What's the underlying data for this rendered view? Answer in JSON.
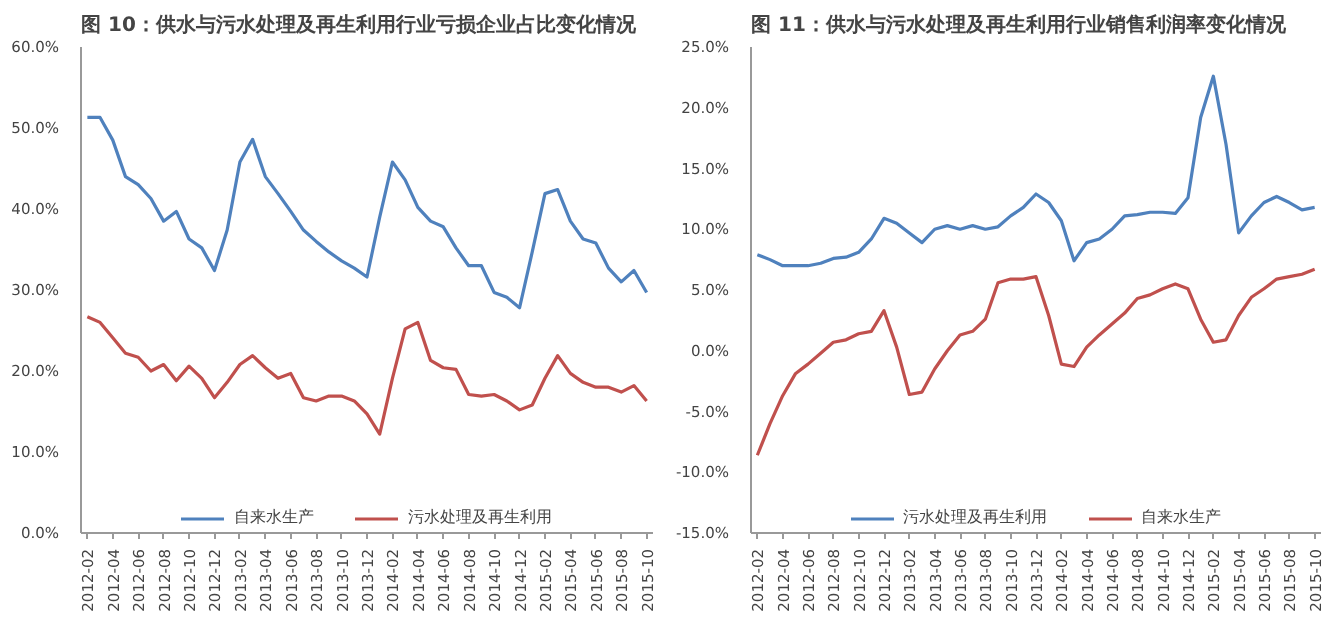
{
  "chart_data": [
    {
      "type": "line",
      "title": "图 10：供水与污水处理及再生利用行业亏损企业占比变化情况",
      "categories": [
        "2012-02",
        null,
        "2012-04",
        null,
        "2012-06",
        null,
        "2012-08",
        null,
        "2012-10",
        null,
        "2012-12",
        null,
        "2013-02",
        null,
        "2013-04",
        null,
        "2013-06",
        null,
        "2013-08",
        null,
        "2013-10",
        null,
        "2013-12",
        null,
        "2014-02",
        null,
        "2014-04",
        null,
        "2014-06",
        null,
        "2014-08",
        null,
        "2014-10",
        null,
        "2014-12",
        null,
        "2015-02",
        null,
        "2015-04",
        null,
        "2015-06",
        null,
        "2015-08",
        null,
        "2015-10"
      ],
      "series": [
        {
          "name": "自来水生产",
          "color": "#4f81bd",
          "values": [
            51.3,
            51.3,
            48.5,
            44,
            43,
            41.3,
            38.5,
            39.7,
            36.3,
            35.2,
            32.4,
            37.4,
            45.8,
            48.6,
            44,
            41.9,
            39.7,
            37.4,
            36,
            34.7,
            33.6,
            32.7,
            31.6,
            39,
            45.8,
            43.6,
            40.2,
            38.5,
            37.8,
            35.2,
            33,
            33,
            29.7,
            29.1,
            27.8,
            34.7,
            41.9,
            42.4,
            38.5,
            36.3,
            35.8,
            32.7,
            31,
            32.4,
            29.7
          ]
        },
        {
          "name": "污水处理及再生利用",
          "color": "#c0504d",
          "values": [
            26.7,
            26,
            24.1,
            22.2,
            21.7,
            20,
            20.8,
            18.8,
            20.6,
            19.1,
            16.7,
            18.6,
            20.8,
            21.9,
            20.4,
            19.1,
            19.7,
            16.7,
            16.3,
            16.9,
            16.9,
            16.3,
            14.7,
            12.2,
            19.1,
            25.2,
            26,
            21.3,
            20.4,
            20.2,
            17.1,
            16.9,
            17.1,
            16.3,
            15.2,
            15.8,
            19.1,
            21.9,
            19.7,
            18.6,
            18,
            18,
            17.4,
            18.2,
            16.3
          ]
        }
      ],
      "ylim": [
        0,
        60
      ],
      "yticks": [
        {
          "value": 0,
          "label": "0.0%"
        },
        {
          "value": 10,
          "label": "10.0%"
        },
        {
          "value": 20,
          "label": "20.0%"
        },
        {
          "value": 30,
          "label": "30.0%"
        },
        {
          "value": 40,
          "label": "40.0%"
        },
        {
          "value": 50,
          "label": "50.0%"
        },
        {
          "value": 60,
          "label": "60.0%"
        }
      ],
      "legend": "bottom",
      "grid": false,
      "marker": "none",
      "line_style": "solid"
    },
    {
      "type": "line",
      "title": "图 11：供水与污水处理及再生利用行业销售利润率变化情况",
      "categories": [
        "2012-02",
        null,
        "2012-04",
        null,
        "2012-06",
        null,
        "2012-08",
        null,
        "2012-10",
        null,
        "2012-12",
        null,
        "2013-02",
        null,
        "2013-04",
        null,
        "2013-06",
        null,
        "2013-08",
        null,
        "2013-10",
        null,
        "2013-12",
        null,
        "2014-02",
        null,
        "2014-04",
        null,
        "2014-06",
        null,
        "2014-08",
        null,
        "2014-10",
        null,
        "2014-12",
        null,
        "2015-02",
        null,
        "2015-04",
        null,
        "2015-06",
        null,
        "2015-08",
        null,
        "2015-10"
      ],
      "series": [
        {
          "name": "污水处理及再生利用",
          "color": "#4f81bd",
          "values": [
            7.9,
            7.5,
            7,
            7,
            7,
            7.2,
            7.6,
            7.7,
            8.1,
            9.2,
            10.9,
            10.5,
            9.7,
            8.9,
            10,
            10.3,
            10,
            10.3,
            10,
            10.2,
            11.1,
            11.8,
            12.9,
            12.2,
            10.7,
            7.4,
            8.9,
            9.2,
            10,
            11.1,
            11.2,
            11.4,
            11.4,
            11.3,
            12.6,
            19.2,
            22.6,
            17,
            9.7,
            11.1,
            12.2,
            12.7,
            12.2,
            11.6,
            11.8
          ]
        },
        {
          "name": "自来水生产",
          "color": "#c0504d",
          "values": [
            -8.6,
            -6,
            -3.7,
            -1.9,
            -1.1,
            -0.2,
            0.7,
            0.9,
            1.4,
            1.6,
            3.3,
            0.3,
            -3.6,
            -3.4,
            -1.5,
            0,
            1.3,
            1.6,
            2.6,
            5.6,
            5.9,
            5.9,
            6.1,
            2.9,
            -1.1,
            -1.3,
            0.3,
            1.3,
            2.2,
            3.1,
            4.3,
            4.6,
            5.1,
            5.5,
            5.1,
            2.6,
            0.7,
            0.9,
            2.9,
            4.4,
            5.1,
            5.9,
            6.1,
            6.3,
            6.7
          ]
        }
      ],
      "ylim": [
        -15,
        25
      ],
      "yticks": [
        {
          "value": -15,
          "label": "-15.0%"
        },
        {
          "value": -10,
          "label": "-10.0%"
        },
        {
          "value": -5,
          "label": "-5.0%"
        },
        {
          "value": 0,
          "label": "0.0%"
        },
        {
          "value": 5,
          "label": "5.0%"
        },
        {
          "value": 10,
          "label": "10.0%"
        },
        {
          "value": 15,
          "label": "15.0%"
        },
        {
          "value": 20,
          "label": "20.0%"
        },
        {
          "value": 25,
          "label": "25.0%"
        }
      ],
      "legend": "bottom",
      "grid": false,
      "marker": "none",
      "line_style": "solid"
    }
  ]
}
